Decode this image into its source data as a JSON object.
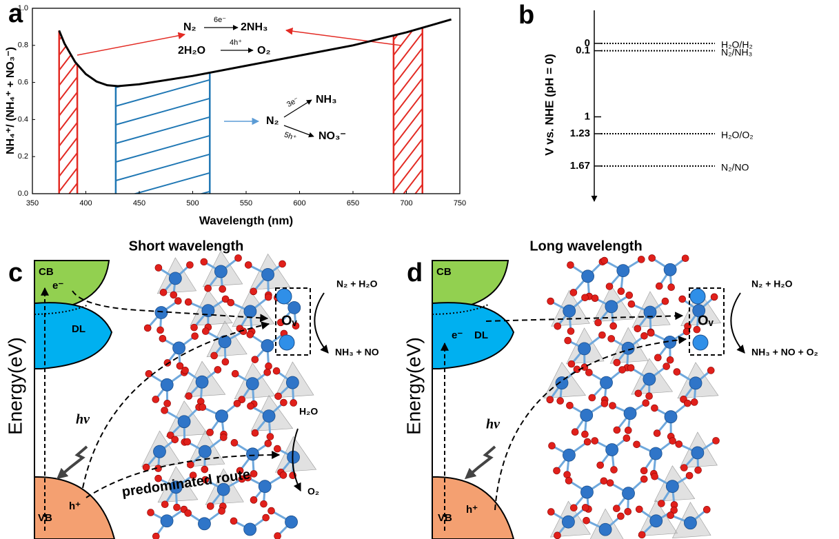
{
  "chart_data": {
    "type": "line",
    "panel_label": "a",
    "xlabel": "Wavelength (nm)",
    "ylabel": "NH₄⁺/ (NH₄⁺ + NO₃⁻)",
    "x": [
      375,
      380,
      390,
      400,
      410,
      420,
      430,
      450,
      500,
      550,
      600,
      650,
      700,
      742
    ],
    "series": [
      {
        "color": "#000000",
        "values": [
          0.88,
          0.81,
          0.71,
          0.645,
          0.605,
          0.585,
          0.58,
          0.59,
          0.635,
          0.69,
          0.745,
          0.8,
          0.87,
          0.94
        ]
      }
    ],
    "xlim": [
      350,
      750
    ],
    "ylim": [
      0,
      1
    ],
    "xticks": [
      350,
      400,
      450,
      500,
      550,
      600,
      650,
      700,
      750
    ],
    "yticks": [
      {
        "value": 0,
        "label": "0.0"
      },
      0.2,
      0.4,
      0.6,
      0.8,
      {
        "value": 1,
        "label": "1.0"
      }
    ],
    "regions": [
      {
        "x": [
          375,
          392
        ],
        "color": "#e32b24"
      },
      {
        "x": [
          428,
          516
        ],
        "color": "#1f77b4"
      },
      {
        "x": [
          688,
          715
        ],
        "color": "#e32b24"
      }
    ],
    "annotations": {
      "n2_top": "N₂",
      "six_e": "6e⁻",
      "two_nh3": "2NH₃",
      "two_h2o": "2H₂O",
      "four_h": "4h⁺",
      "o2": "O₂",
      "n2_mid": "N₂",
      "three_e": "3e⁻",
      "nh3": "NH₃",
      "five_h": "5h⁺",
      "no3": "NO₃⁻"
    }
  },
  "potential_panel": {
    "panel_label": "b",
    "ylabel": "V vs. NHE (pH = 0)",
    "ylim": [
      -0.45,
      2.15
    ],
    "yticks": [
      0,
      0.1,
      1,
      1.23,
      1.67
    ],
    "levels": [
      {
        "value": 0,
        "name": "H₂O/H₂"
      },
      {
        "value": 0.1,
        "name": "N₂/NH₃"
      },
      {
        "value": 1.23,
        "name": "H₂O/O₂"
      },
      {
        "value": 1.67,
        "name": "N₂/NO"
      }
    ]
  },
  "panels": [
    {
      "label": "c",
      "title": "Short wavelength",
      "axis_label": "Energy(eV)",
      "cb": "CB",
      "dl": "DL",
      "vb": "VB",
      "electron": "e⁻",
      "hole": "h⁺",
      "photon": "hν",
      "vacancy": "Oᵥ",
      "reactants": "N₂ + H₂O",
      "products": "NH₃ + NO",
      "water": "H₂O",
      "oxygen": "O₂",
      "route": "predominated route"
    },
    {
      "label": "d",
      "title": "Long wavelength",
      "axis_label": "Energy(eV)",
      "cb": "CB",
      "dl": "DL",
      "vb": "VB",
      "electron": "e⁻",
      "hole": "h⁺",
      "photon": "hν",
      "vacancy": "Oᵥ",
      "reactants": "N₂ + H₂O",
      "products": "NH₃ + NO + O₂"
    }
  ]
}
